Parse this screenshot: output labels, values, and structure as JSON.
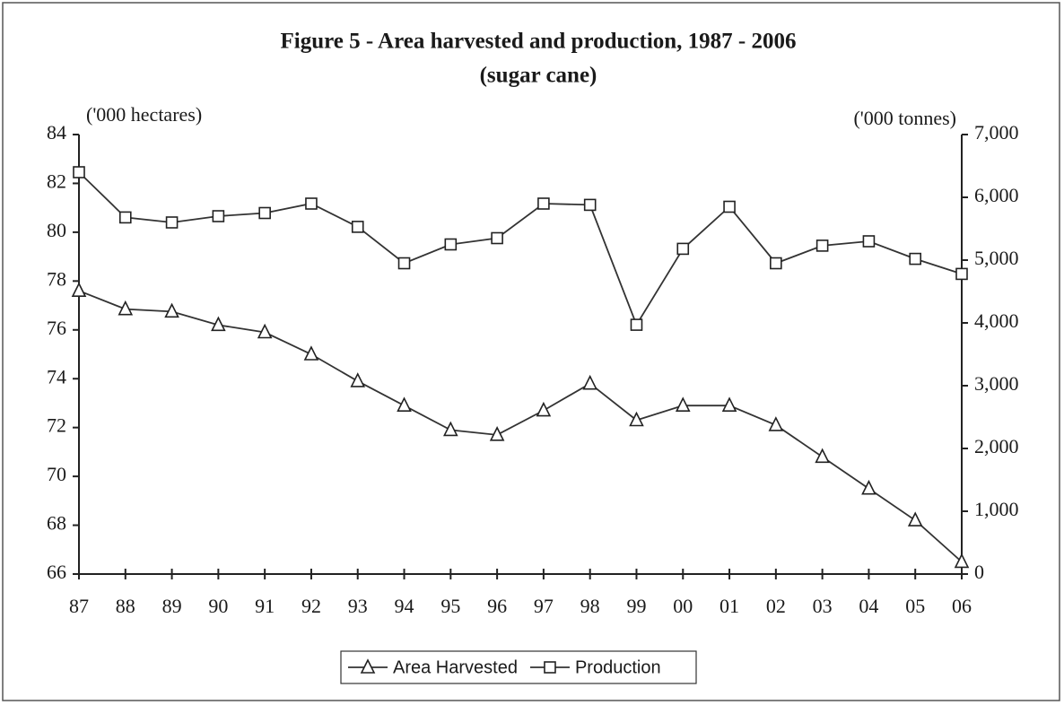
{
  "chart_data": {
    "type": "line",
    "title": "Figure 5 - Area harvested and production, 1987 - 2006",
    "subtitle": "(sugar cane)",
    "ylabel": "('000 hectares)",
    "y2label": "('000 tonnes)",
    "categories": [
      "87",
      "88",
      "89",
      "90",
      "91",
      "92",
      "93",
      "94",
      "95",
      "96",
      "97",
      "98",
      "99",
      "00",
      "01",
      "02",
      "03",
      "04",
      "05",
      "06"
    ],
    "series": [
      {
        "name": "Area Harvested",
        "color": "#333333",
        "marker": "triangle",
        "values": [
          77.6,
          76.85,
          76.75,
          76.2,
          75.9,
          75.0,
          73.9,
          72.9,
          71.9,
          71.7,
          72.7,
          73.8,
          72.3,
          72.9,
          72.9,
          72.1,
          70.8,
          69.5,
          68.2,
          66.5
        ]
      },
      {
        "name": "Production",
        "color": "#333333",
        "marker": "square",
        "axis": "y2",
        "values": [
          6400,
          5680,
          5600,
          5700,
          5750,
          5900,
          5530,
          4950,
          5250,
          5350,
          5900,
          5880,
          3970,
          5180,
          5850,
          4950,
          5230,
          5300,
          5020,
          4780
        ]
      }
    ],
    "ylim": [
      66,
      84
    ],
    "yticks": [
      66,
      68,
      70,
      72,
      74,
      76,
      78,
      80,
      82,
      84
    ],
    "y2lim": [
      0,
      7000
    ],
    "y2ticks": [
      0,
      {
        "value": 1000,
        "label": "1,000"
      },
      {
        "value": 2000,
        "label": "2,000"
      },
      {
        "value": 3000,
        "label": "3,000"
      },
      {
        "value": 4000,
        "label": "4,000"
      },
      {
        "value": 5000,
        "label": "5,000"
      },
      {
        "value": 6000,
        "label": "6,000"
      },
      {
        "value": 7000,
        "label": "7,000"
      }
    ],
    "legend": "bottom"
  }
}
